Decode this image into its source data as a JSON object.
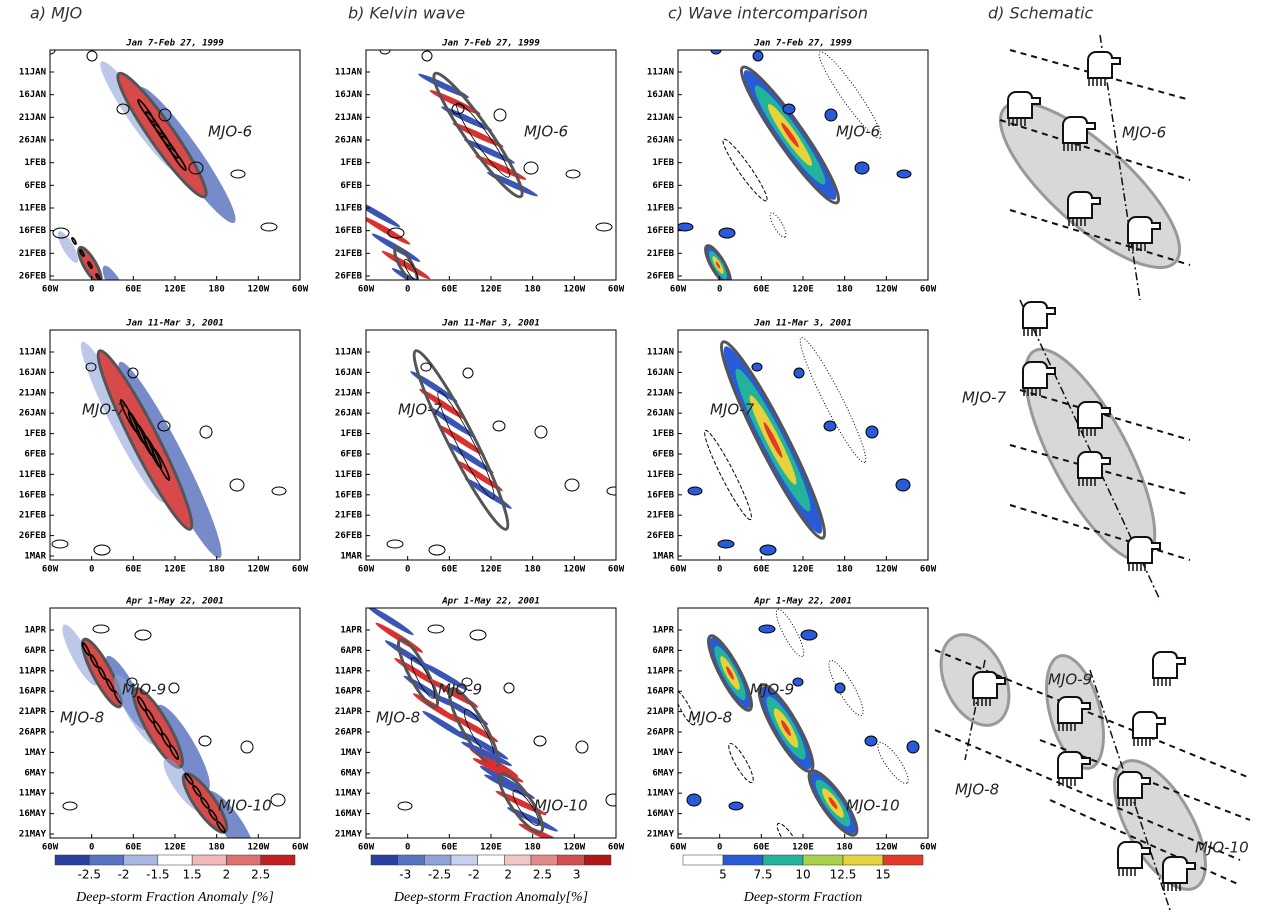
{
  "columns": [
    "a) MJO",
    "b) Kelvin wave",
    "c) Wave intercomparison",
    "d) Schematic"
  ],
  "rows": [
    {
      "title": "Jan 7-Feb 27, 1999",
      "yticks": [
        "11JAN",
        "16JAN",
        "21JAN",
        "26JAN",
        "1FEB",
        "6FEB",
        "11FEB",
        "16FEB",
        "21FEB",
        "26FEB"
      ],
      "annotations": [
        "MJO-6"
      ]
    },
    {
      "title": "Jan 11-Mar 3, 2001",
      "yticks": [
        "11JAN",
        "16JAN",
        "21JAN",
        "26JAN",
        "1FEB",
        "6FEB",
        "11FEB",
        "16FEB",
        "21FEB",
        "26FEB",
        "1MAR"
      ],
      "annotations": [
        "MJO-7"
      ]
    },
    {
      "title": "Apr 1-May 22, 2001",
      "yticks": [
        "1APR",
        "6APR",
        "11APR",
        "16APR",
        "21APR",
        "26APR",
        "1MAY",
        "6MAY",
        "11MAY",
        "16MAY",
        "21MAY"
      ],
      "annotations": [
        "MJO-9",
        "MJO-8",
        "MJO-10"
      ]
    }
  ],
  "xticks": [
    "60W",
    "0",
    "60E",
    "120E",
    "180",
    "120W",
    "60W"
  ],
  "colorbars": [
    {
      "ticks": [
        "-2.5",
        "-2",
        "-1.5",
        "1.5",
        "2",
        "2.5"
      ],
      "label": "Deep-storm Fraction Anomaly [%]"
    },
    {
      "ticks": [
        "-3",
        "-2.5",
        "-2",
        "2",
        "2.5",
        "3"
      ],
      "label": "Deep-storm Fraction Anomaly[%]"
    },
    {
      "ticks": [
        "5",
        "7.5",
        "10",
        "12.5",
        "15"
      ],
      "label": "Deep-storm Fraction"
    }
  ],
  "schematic": [
    "MJO-6",
    "MJO-7",
    "MJO-9",
    "MJO-8",
    "MJO-10"
  ]
}
